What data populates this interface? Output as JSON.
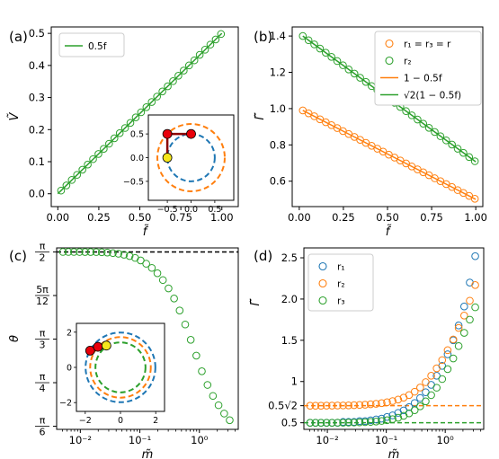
{
  "colors": {
    "blue": "#1f77b4",
    "orange": "#ff7f0e",
    "green": "#2ca02c",
    "darkred": "#8b0000",
    "red": "#e8000b",
    "yellow": "#f5e61c"
  },
  "chart_data": [
    {
      "panel": "(a)",
      "type": "line",
      "xlabel": "f̃",
      "ylabel": "Ṽ",
      "xlim": [
        -0.04,
        1.1
      ],
      "ylim": [
        -0.04,
        0.52
      ],
      "xticks": [
        0.0,
        0.25,
        0.5,
        0.75,
        1.0
      ],
      "xtick_labels": [
        "0.00",
        "0.25",
        "0.50",
        "0.75",
        "1.00"
      ],
      "yticks": [
        0.0,
        0.1,
        0.2,
        0.3,
        0.4,
        0.5
      ],
      "ytick_labels": [
        "0.0",
        "0.1",
        "0.2",
        "0.3",
        "0.4",
        "0.5"
      ],
      "legend": {
        "placement": "top-left",
        "entries": [
          {
            "label": "0.5f",
            "color": "#2ca02c",
            "marker": "line"
          }
        ]
      },
      "series": [
        {
          "kind": "line",
          "color": "#2ca02c",
          "x": [
            0.0,
            1.0
          ],
          "y": [
            0.0,
            0.5
          ]
        },
        {
          "kind": "markers",
          "color": "#2ca02c",
          "x": [
            0.02,
            0.0525,
            0.085,
            0.1175,
            0.15,
            0.1825,
            0.215,
            0.2475,
            0.28,
            0.3125,
            0.345,
            0.3775,
            0.41,
            0.4425,
            0.475,
            0.5075,
            0.54,
            0.5725,
            0.605,
            0.6375,
            0.67,
            0.7025,
            0.735,
            0.7675,
            0.8,
            0.8325,
            0.865,
            0.8975,
            0.93,
            0.9625,
            0.995
          ],
          "y": [
            0.01,
            0.026,
            0.043,
            0.059,
            0.075,
            0.091,
            0.108,
            0.124,
            0.14,
            0.156,
            0.173,
            0.189,
            0.205,
            0.221,
            0.238,
            0.254,
            0.27,
            0.286,
            0.303,
            0.319,
            0.335,
            0.351,
            0.368,
            0.384,
            0.4,
            0.416,
            0.433,
            0.449,
            0.465,
            0.481,
            0.498
          ]
        }
      ],
      "inset": {
        "xlim": [
          -0.9,
          0.9
        ],
        "ylim": [
          -0.9,
          0.9
        ],
        "xticks": [
          -0.5,
          0.0,
          0.5
        ],
        "xtick_labels": [
          "−0.5",
          "0.0",
          "0.5"
        ],
        "yticks": [
          -0.5,
          0.0,
          0.5
        ],
        "ytick_labels": [
          "−0.5",
          "0.0",
          "0.5"
        ],
        "circles": [
          {
            "r": 0.5,
            "color": "#1f77b4"
          },
          {
            "r": 0.71,
            "color": "#ff7f0e"
          }
        ],
        "chain": [
          [
            -0.5,
            0.0
          ],
          [
            -0.5,
            0.5
          ],
          [
            0.0,
            0.5
          ]
        ],
        "chain_point_colors": [
          "#f5e61c",
          "#e8000b",
          "#e8000b"
        ]
      }
    },
    {
      "panel": "(b)",
      "type": "line",
      "xlabel": "f̃",
      "ylabel": "Γ̃",
      "xlim": [
        -0.04,
        1.04
      ],
      "ylim": [
        0.46,
        1.45
      ],
      "xticks": [
        0.0,
        0.25,
        0.5,
        0.75,
        1.0
      ],
      "xtick_labels": [
        "0.00",
        "0.25",
        "0.50",
        "0.75",
        "1.00"
      ],
      "yticks": [
        0.6,
        0.8,
        1.0,
        1.2,
        1.4
      ],
      "ytick_labels": [
        "0.6",
        "0.8",
        "1.0",
        "1.2",
        "1.4"
      ],
      "legend": {
        "placement": "top-right",
        "entries": [
          {
            "label": "r₁ = r₃ = r",
            "color": "#ff7f0e",
            "marker": "circle"
          },
          {
            "label": "r₂",
            "color": "#2ca02c",
            "marker": "circle"
          },
          {
            "label": "1 − 0.5f",
            "color": "#ff7f0e",
            "marker": "line"
          },
          {
            "label": "√2(1 − 0.5f)",
            "color": "#2ca02c",
            "marker": "line"
          }
        ]
      },
      "series": [
        {
          "kind": "line",
          "color": "#2ca02c",
          "x": [
            0.02,
            1.0
          ],
          "y": [
            1.4,
            0.707
          ]
        },
        {
          "kind": "line",
          "color": "#ff7f0e",
          "x": [
            0.02,
            1.0
          ],
          "y": [
            0.99,
            0.5
          ]
        },
        {
          "kind": "markers",
          "color": "#2ca02c",
          "x": [
            0.02,
            0.0525,
            0.085,
            0.1175,
            0.15,
            0.1825,
            0.215,
            0.2475,
            0.28,
            0.3125,
            0.345,
            0.3775,
            0.41,
            0.4425,
            0.475,
            0.5075,
            0.54,
            0.5725,
            0.605,
            0.6375,
            0.67,
            0.7025,
            0.735,
            0.7675,
            0.8,
            0.8325,
            0.865,
            0.8975,
            0.93,
            0.9625,
            0.995
          ],
          "y": [
            1.4,
            1.377,
            1.354,
            1.331,
            1.308,
            1.285,
            1.262,
            1.239,
            1.216,
            1.193,
            1.17,
            1.147,
            1.124,
            1.101,
            1.078,
            1.055,
            1.032,
            1.009,
            0.986,
            0.963,
            0.94,
            0.917,
            0.894,
            0.871,
            0.848,
            0.825,
            0.802,
            0.779,
            0.756,
            0.733,
            0.71
          ]
        },
        {
          "kind": "markers",
          "color": "#ff7f0e",
          "x": [
            0.02,
            0.0525,
            0.085,
            0.1175,
            0.15,
            0.1825,
            0.215,
            0.2475,
            0.28,
            0.3125,
            0.345,
            0.3775,
            0.41,
            0.4425,
            0.475,
            0.5075,
            0.54,
            0.5725,
            0.605,
            0.6375,
            0.67,
            0.7025,
            0.735,
            0.7675,
            0.8,
            0.8325,
            0.865,
            0.8975,
            0.93,
            0.9625,
            0.995
          ],
          "y": [
            0.99,
            0.974,
            0.958,
            0.941,
            0.925,
            0.909,
            0.893,
            0.876,
            0.86,
            0.844,
            0.828,
            0.811,
            0.795,
            0.779,
            0.763,
            0.746,
            0.73,
            0.714,
            0.698,
            0.681,
            0.665,
            0.649,
            0.633,
            0.616,
            0.6,
            0.584,
            0.568,
            0.551,
            0.535,
            0.519,
            0.503
          ]
        }
      ]
    },
    {
      "panel": "(c)",
      "type": "scatter",
      "xscale": "log",
      "xlabel": "m̃",
      "ylabel": "θ",
      "xlim": [
        0.004,
        4.5
      ],
      "ylim": [
        0.505,
        1.595
      ],
      "xticks": [
        0.01,
        0.1,
        1.0
      ],
      "xtick_labels": [
        "10⁻²",
        "10⁻¹",
        "10⁰"
      ],
      "yticks": [
        1.5708,
        1.309,
        1.0472,
        0.7854,
        0.5236
      ],
      "ytick_labels": [
        [
          "π",
          "2"
        ],
        [
          "5π",
          "12"
        ],
        [
          "π",
          "3"
        ],
        [
          "π",
          "4"
        ],
        [
          "π",
          "6"
        ]
      ],
      "hlines": [
        {
          "y": 1.5708,
          "color": "#000000",
          "style": "dashed"
        }
      ],
      "series": [
        {
          "kind": "markers",
          "color": "#2ca02c",
          "x": [
            0.0051,
            0.0063,
            0.0078,
            0.0097,
            0.012,
            0.0149,
            0.0185,
            0.0229,
            0.0284,
            0.0352,
            0.0437,
            0.0542,
            0.0672,
            0.0833,
            0.103,
            0.128,
            0.159,
            0.197,
            0.244,
            0.303,
            0.376,
            0.466,
            0.578,
            0.716,
            0.888,
            1.1,
            1.37,
            1.69,
            2.1,
            2.61,
            3.23
          ],
          "y": [
            1.5708,
            1.5708,
            1.5707,
            1.5706,
            1.5705,
            1.5703,
            1.57,
            1.569,
            1.567,
            1.564,
            1.56,
            1.554,
            1.546,
            1.535,
            1.52,
            1.5,
            1.475,
            1.443,
            1.402,
            1.352,
            1.291,
            1.219,
            1.135,
            1.043,
            0.948,
            0.854,
            0.772,
            0.706,
            0.65,
            0.6,
            0.56
          ]
        }
      ],
      "inset": {
        "xlim": [
          -2.5,
          2.5
        ],
        "ylim": [
          -2.5,
          2.5
        ],
        "xticks": [
          -2,
          0,
          2
        ],
        "xtick_labels": [
          "−2",
          "0",
          "2"
        ],
        "yticks": [
          -2,
          0,
          2
        ],
        "ytick_labels": [
          "−2",
          "0",
          "2"
        ],
        "circles": [
          {
            "r": 1.98,
            "color": "#1f77b4"
          },
          {
            "r": 1.72,
            "color": "#ff7f0e"
          },
          {
            "r": 1.42,
            "color": "#2ca02c"
          }
        ],
        "chain": [
          [
            -1.72,
            0.95
          ],
          [
            -1.28,
            1.17
          ],
          [
            -0.8,
            1.24
          ]
        ],
        "chain_point_colors": [
          "#e8000b",
          "#e8000b",
          "#f5e61c"
        ]
      }
    },
    {
      "panel": "(d)",
      "type": "scatter",
      "xscale": "log",
      "xlabel": "m̃",
      "ylabel": "Γ̃",
      "xlim": [
        0.004,
        4.5
      ],
      "ylim": [
        0.42,
        2.62
      ],
      "xticks": [
        0.01,
        0.1,
        1.0
      ],
      "xtick_labels": [
        "10⁻²",
        "10⁻¹",
        "10⁰"
      ],
      "yticks": [
        0.5,
        0.7071,
        1.0,
        1.5,
        2.0,
        2.5
      ],
      "ytick_labels": [
        "0.5",
        "0.5√2",
        "1",
        "1.5",
        "2.0",
        "2.5"
      ],
      "legend": {
        "placement": "top-left",
        "entries": [
          {
            "label": "r₁",
            "color": "#1f77b4",
            "marker": "circle"
          },
          {
            "label": "r₂",
            "color": "#ff7f0e",
            "marker": "circle"
          },
          {
            "label": "r₃",
            "color": "#2ca02c",
            "marker": "circle"
          }
        ]
      },
      "hlines": [
        {
          "y": 0.7071,
          "color": "#ff7f0e",
          "style": "dashed"
        },
        {
          "y": 0.5,
          "color": "#2ca02c",
          "style": "dashed"
        }
      ],
      "series": [
        {
          "name": "r₁",
          "kind": "markers",
          "color": "#1f77b4",
          "x": [
            0.0051,
            0.0063,
            0.0078,
            0.0097,
            0.012,
            0.0149,
            0.0185,
            0.0229,
            0.0284,
            0.0352,
            0.0437,
            0.0542,
            0.0672,
            0.0833,
            0.103,
            0.128,
            0.159,
            0.197,
            0.244,
            0.303,
            0.376,
            0.466,
            0.578,
            0.716,
            0.888,
            1.1,
            1.37,
            1.69,
            2.1,
            2.61,
            3.23
          ],
          "y": [
            0.5,
            0.5,
            0.5,
            0.5,
            0.5,
            0.5,
            0.51,
            0.51,
            0.51,
            0.52,
            0.52,
            0.53,
            0.54,
            0.55,
            0.57,
            0.59,
            0.62,
            0.65,
            0.69,
            0.74,
            0.8,
            0.87,
            0.96,
            1.07,
            1.19,
            1.33,
            1.5,
            1.68,
            1.91,
            2.2,
            2.52
          ]
        },
        {
          "name": "r₂",
          "kind": "markers",
          "color": "#ff7f0e",
          "x": [
            0.0051,
            0.0063,
            0.0078,
            0.0097,
            0.012,
            0.0149,
            0.0185,
            0.0229,
            0.0284,
            0.0352,
            0.0437,
            0.0542,
            0.0672,
            0.0833,
            0.103,
            0.128,
            0.159,
            0.197,
            0.244,
            0.303,
            0.376,
            0.466,
            0.578,
            0.716,
            0.888,
            1.1,
            1.37,
            1.69,
            2.1,
            2.61,
            3.23
          ],
          "y": [
            0.707,
            0.707,
            0.707,
            0.708,
            0.708,
            0.709,
            0.71,
            0.711,
            0.713,
            0.716,
            0.719,
            0.724,
            0.73,
            0.738,
            0.749,
            0.763,
            0.781,
            0.805,
            0.836,
            0.876,
            0.927,
            0.992,
            1.07,
            1.16,
            1.26,
            1.38,
            1.51,
            1.65,
            1.8,
            1.98,
            2.17
          ]
        },
        {
          "name": "r₃",
          "kind": "markers",
          "color": "#2ca02c",
          "x": [
            0.0051,
            0.0063,
            0.0078,
            0.0097,
            0.012,
            0.0149,
            0.0185,
            0.0229,
            0.0284,
            0.0352,
            0.0437,
            0.0542,
            0.0672,
            0.0833,
            0.103,
            0.128,
            0.159,
            0.197,
            0.244,
            0.303,
            0.376,
            0.466,
            0.578,
            0.716,
            0.888,
            1.1,
            1.37,
            1.69,
            2.1,
            2.61,
            3.23
          ],
          "y": [
            0.5,
            0.5,
            0.5,
            0.5,
            0.5,
            0.501,
            0.501,
            0.502,
            0.503,
            0.505,
            0.507,
            0.51,
            0.515,
            0.522,
            0.531,
            0.544,
            0.561,
            0.584,
            0.614,
            0.652,
            0.7,
            0.76,
            0.835,
            0.925,
            1.03,
            1.15,
            1.28,
            1.43,
            1.59,
            1.75,
            1.9
          ]
        }
      ]
    }
  ]
}
